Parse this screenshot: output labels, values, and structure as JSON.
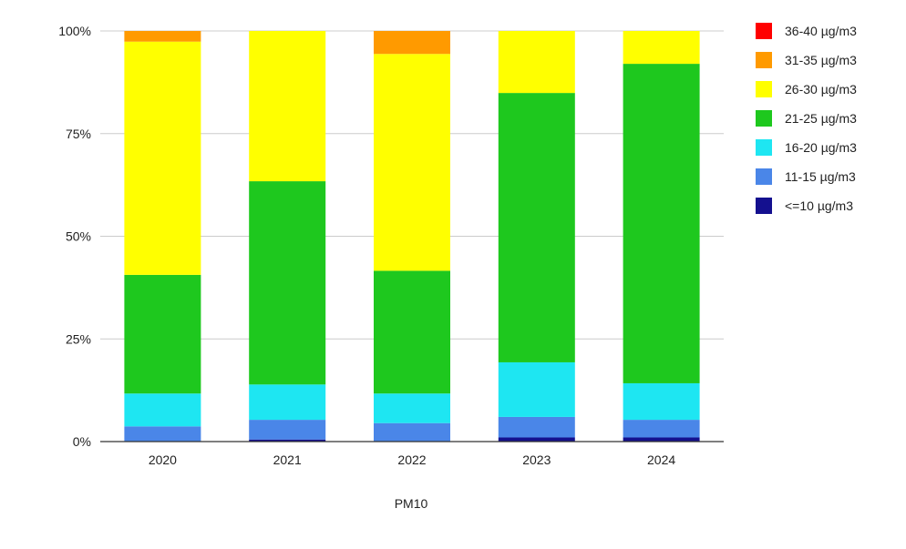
{
  "chart_data": {
    "type": "bar",
    "stacked": true,
    "percent": true,
    "title": "",
    "xlabel": "PM10",
    "ylabel": "",
    "ylim": [
      0,
      100
    ],
    "yticks": [
      "0%",
      "25%",
      "50%",
      "75%",
      "100%"
    ],
    "grid": true,
    "legend_position": "right",
    "categories": [
      "2020",
      "2021",
      "2022",
      "2023",
      "2024"
    ],
    "series": [
      {
        "name": "<=10 µg/m3",
        "color": "#14108f",
        "values": [
          0,
          0.5,
          0,
          1,
          1
        ]
      },
      {
        "name": "11-15 µg/m3",
        "color": "#4a86e8",
        "values": [
          3.7,
          4.8,
          4.5,
          5,
          4.3
        ]
      },
      {
        "name": "16-20 µg/m3",
        "color": "#1ee6f2",
        "values": [
          8,
          8.6,
          7.2,
          13.3,
          8.9
        ]
      },
      {
        "name": "21-25 µg/m3",
        "color": "#1ec81e",
        "values": [
          28.9,
          49.5,
          29.9,
          65.6,
          77.8
        ]
      },
      {
        "name": "26-30 µg/m3",
        "color": "#ffff00",
        "values": [
          56.8,
          36.6,
          52.8,
          15.1,
          8
        ]
      },
      {
        "name": "31-35 µg/m3",
        "color": "#ff9a00",
        "values": [
          2.6,
          0,
          5.6,
          0,
          0
        ]
      },
      {
        "name": "36-40 µg/m3",
        "color": "#ff0000",
        "values": [
          0,
          0,
          0,
          0,
          0
        ]
      }
    ]
  }
}
